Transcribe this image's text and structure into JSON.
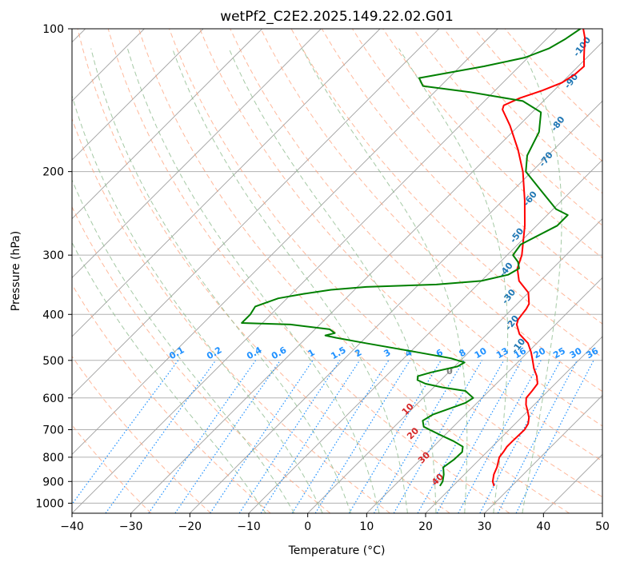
{
  "chart_data": {
    "type": "line",
    "chart_kind": "skew-T log-P diagram",
    "title": "wetPf2_C2E2.2025.149.22.02.G01",
    "xlabel": "Temperature (°C)",
    "ylabel": "Pressure (hPa)",
    "xlim": [
      -40,
      50
    ],
    "ylim": [
      1050,
      100
    ],
    "y_scale": "log",
    "grid": true,
    "x_ticks": [
      "−40",
      "−30",
      "−20",
      "−10",
      "0",
      "10",
      "20",
      "30",
      "40",
      "50"
    ],
    "x_tick_values": [
      -40,
      -30,
      -20,
      -10,
      0,
      10,
      20,
      30,
      40,
      50
    ],
    "y_ticks": [
      "100",
      "200",
      "300",
      "400",
      "500",
      "600",
      "700",
      "800",
      "900",
      "1000"
    ],
    "y_tick_values": [
      100,
      200,
      300,
      400,
      500,
      600,
      700,
      800,
      900,
      1000
    ],
    "colors": {
      "temperature": "#ff0000",
      "dewpoint": "#008000",
      "isotherm": "#a0a0a0",
      "dry_adiabat": "#ffa07a",
      "moist_adiabat": "#8fbc8f",
      "mixing_ratio": "#1e90ff",
      "dry_adiabat_label": "#d62728",
      "moist_adiabat_label": "#1f77b4",
      "mixing_ratio_label": "#1e90ff",
      "zero_label": "#808080",
      "grid": "#b0b0b0",
      "lcl_curve": "#d2b48c"
    },
    "series": [
      {
        "key": "temperature",
        "points": [
          {
            "p": 920,
            "t": 27
          },
          {
            "p": 900,
            "t": 26
          },
          {
            "p": 870,
            "t": 25
          },
          {
            "p": 840,
            "t": 24.3
          },
          {
            "p": 800,
            "t": 23
          },
          {
            "p": 780,
            "t": 22.8
          },
          {
            "p": 760,
            "t": 22.5
          },
          {
            "p": 740,
            "t": 22.5
          },
          {
            "p": 700,
            "t": 22.6
          },
          {
            "p": 680,
            "t": 22.2
          },
          {
            "p": 660,
            "t": 21.3
          },
          {
            "p": 640,
            "t": 20.0
          },
          {
            "p": 620,
            "t": 18.6
          },
          {
            "p": 600,
            "t": 17.5
          },
          {
            "p": 580,
            "t": 17.3
          },
          {
            "p": 560,
            "t": 17.0
          },
          {
            "p": 540,
            "t": 15.6
          },
          {
            "p": 520,
            "t": 13.8
          },
          {
            "p": 500,
            "t": 12.2
          },
          {
            "p": 480,
            "t": 10.5
          },
          {
            "p": 460,
            "t": 8.5
          },
          {
            "p": 440,
            "t": 5.5
          },
          {
            "p": 420,
            "t": 3.4
          },
          {
            "p": 410,
            "t": 2.8
          },
          {
            "p": 400,
            "t": 2.6
          },
          {
            "p": 390,
            "t": 2.4
          },
          {
            "p": 380,
            "t": 2.0
          },
          {
            "p": 360,
            "t": 0.0
          },
          {
            "p": 340,
            "t": -3.6
          },
          {
            "p": 320,
            "t": -6.0
          },
          {
            "p": 300,
            "t": -7.5
          },
          {
            "p": 260,
            "t": -12.0
          },
          {
            "p": 230,
            "t": -16.3
          },
          {
            "p": 200,
            "t": -21.5
          },
          {
            "p": 180,
            "t": -26.0
          },
          {
            "p": 160,
            "t": -31.5
          },
          {
            "p": 148,
            "t": -35.5
          },
          {
            "p": 145,
            "t": -36.0
          },
          {
            "p": 140,
            "t": -34.5
          },
          {
            "p": 135,
            "t": -32.0
          },
          {
            "p": 130,
            "t": -30.0
          },
          {
            "p": 125,
            "t": -29.2
          },
          {
            "p": 120,
            "t": -29.0
          },
          {
            "p": 115,
            "t": -30.5
          },
          {
            "p": 110,
            "t": -32.0
          },
          {
            "p": 105,
            "t": -33.5
          },
          {
            "p": 100,
            "t": -35.5
          }
        ]
      },
      {
        "key": "dewpoint",
        "points": [
          {
            "p": 920,
            "t": 17.8
          },
          {
            "p": 900,
            "t": 17.5
          },
          {
            "p": 870,
            "t": 16.5
          },
          {
            "p": 840,
            "t": 15.2
          },
          {
            "p": 810,
            "t": 15.7
          },
          {
            "p": 780,
            "t": 15.8
          },
          {
            "p": 760,
            "t": 15.0
          },
          {
            "p": 740,
            "t": 12.5
          },
          {
            "p": 720,
            "t": 9.5
          },
          {
            "p": 700,
            "t": 6.5
          },
          {
            "p": 690,
            "t": 5.0
          },
          {
            "p": 670,
            "t": 3.8
          },
          {
            "p": 650,
            "t": 4.5
          },
          {
            "p": 630,
            "t": 6.5
          },
          {
            "p": 615,
            "t": 8.0
          },
          {
            "p": 600,
            "t": 8.5
          },
          {
            "p": 580,
            "t": 6.0
          },
          {
            "p": 570,
            "t": 1.5
          },
          {
            "p": 560,
            "t": -2.0
          },
          {
            "p": 550,
            "t": -4.0
          },
          {
            "p": 540,
            "t": -4.6
          },
          {
            "p": 530,
            "t": -3.0
          },
          {
            "p": 515,
            "t": 0.5
          },
          {
            "p": 505,
            "t": 1.0
          },
          {
            "p": 495,
            "t": -2.0
          },
          {
            "p": 480,
            "t": -9.0
          },
          {
            "p": 460,
            "t": -19.0
          },
          {
            "p": 448,
            "t": -25.0
          },
          {
            "p": 443,
            "t": -27.2
          },
          {
            "p": 438,
            "t": -26.0
          },
          {
            "p": 430,
            "t": -27.5
          },
          {
            "p": 420,
            "t": -35.0
          },
          {
            "p": 417,
            "t": -43.5
          },
          {
            "p": 400,
            "t": -43.5
          },
          {
            "p": 385,
            "t": -44.0
          },
          {
            "p": 370,
            "t": -41.5
          },
          {
            "p": 362,
            "t": -38.0
          },
          {
            "p": 355,
            "t": -34.0
          },
          {
            "p": 350,
            "t": -28.5
          },
          {
            "p": 346,
            "t": -17.0
          },
          {
            "p": 340,
            "t": -10.0
          },
          {
            "p": 330,
            "t": -6.5
          },
          {
            "p": 320,
            "t": -5.7
          },
          {
            "p": 310,
            "t": -7.0
          },
          {
            "p": 300,
            "t": -9.0
          },
          {
            "p": 285,
            "t": -9.5
          },
          {
            "p": 260,
            "t": -6.5
          },
          {
            "p": 247,
            "t": -6.5
          },
          {
            "p": 240,
            "t": -9.5
          },
          {
            "p": 220,
            "t": -15.0
          },
          {
            "p": 200,
            "t": -21.0
          },
          {
            "p": 185,
            "t": -23.5
          },
          {
            "p": 165,
            "t": -25.5
          },
          {
            "p": 150,
            "t": -28.5
          },
          {
            "p": 142,
            "t": -33.5
          },
          {
            "p": 136,
            "t": -44.0
          },
          {
            "p": 132,
            "t": -53.0
          },
          {
            "p": 127,
            "t": -55.0
          },
          {
            "p": 120,
            "t": -46.0
          },
          {
            "p": 115,
            "t": -40.5
          },
          {
            "p": 110,
            "t": -38.0
          },
          {
            "p": 105,
            "t": -36.8
          },
          {
            "p": 100,
            "t": -36.0
          }
        ]
      }
    ],
    "dry_adiabats_c": [
      -30,
      -20,
      -10,
      0,
      10,
      20,
      30,
      40,
      50,
      60,
      70,
      80,
      90,
      100,
      110,
      120,
      130,
      140,
      150,
      160
    ],
    "moist_adiabats_c": [
      -10,
      -5,
      0,
      5,
      10,
      15,
      20,
      25,
      30,
      35
    ],
    "mixing_ratios_gkg": [
      0.1,
      0.2,
      0.4,
      0.6,
      1,
      1.5,
      2,
      3,
      4,
      6,
      8,
      10,
      13,
      16,
      20,
      25,
      30,
      36
    ],
    "mixing_ratio_labels": [
      "0.1",
      "0.2",
      "0.4",
      "0.6",
      "1",
      "1.5",
      "2",
      "3",
      "4",
      "6",
      "8",
      "10",
      "13",
      "16",
      "20",
      "25",
      "30",
      "36"
    ],
    "dry_adiabat_labels": [
      "10",
      "20",
      "30",
      "40"
    ],
    "moist_adiabat_labels": [
      "-100",
      "-90",
      "-80",
      "-70",
      "-60",
      "-50",
      "-40",
      "-30",
      "-20",
      "-10"
    ],
    "zero_label": "0"
  }
}
